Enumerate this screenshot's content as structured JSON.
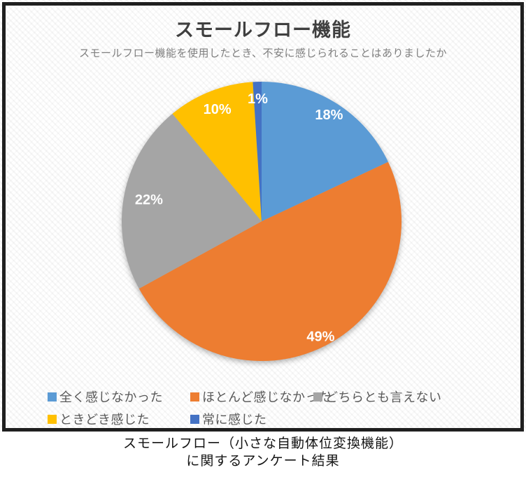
{
  "chart_data": {
    "type": "pie",
    "title": "スモールフロー機能",
    "subtitle": "スモールフロー機能を使用したとき、不安に感じられることはありましたか",
    "categories": [
      "全く感じなかった",
      "ほとんど感じなかった",
      "どちらとも言えない",
      "ときどき感じた",
      "常に感じた"
    ],
    "values": [
      18,
      49,
      22,
      10,
      1
    ],
    "unit": "%",
    "data_labels": [
      "18%",
      "49%",
      "22%",
      "10%",
      "1%"
    ],
    "colors": [
      "#5b9bd5",
      "#ed7d31",
      "#a5a5a5",
      "#ffc000",
      "#4472c4"
    ],
    "start_angle_deg": 0,
    "direction": "clockwise",
    "legend_position": "bottom",
    "label_color": "#ffffff"
  },
  "caption": {
    "line1": "スモールフロー（小さな自動体位変換機能）",
    "line2": "に関するアンケート結果"
  }
}
